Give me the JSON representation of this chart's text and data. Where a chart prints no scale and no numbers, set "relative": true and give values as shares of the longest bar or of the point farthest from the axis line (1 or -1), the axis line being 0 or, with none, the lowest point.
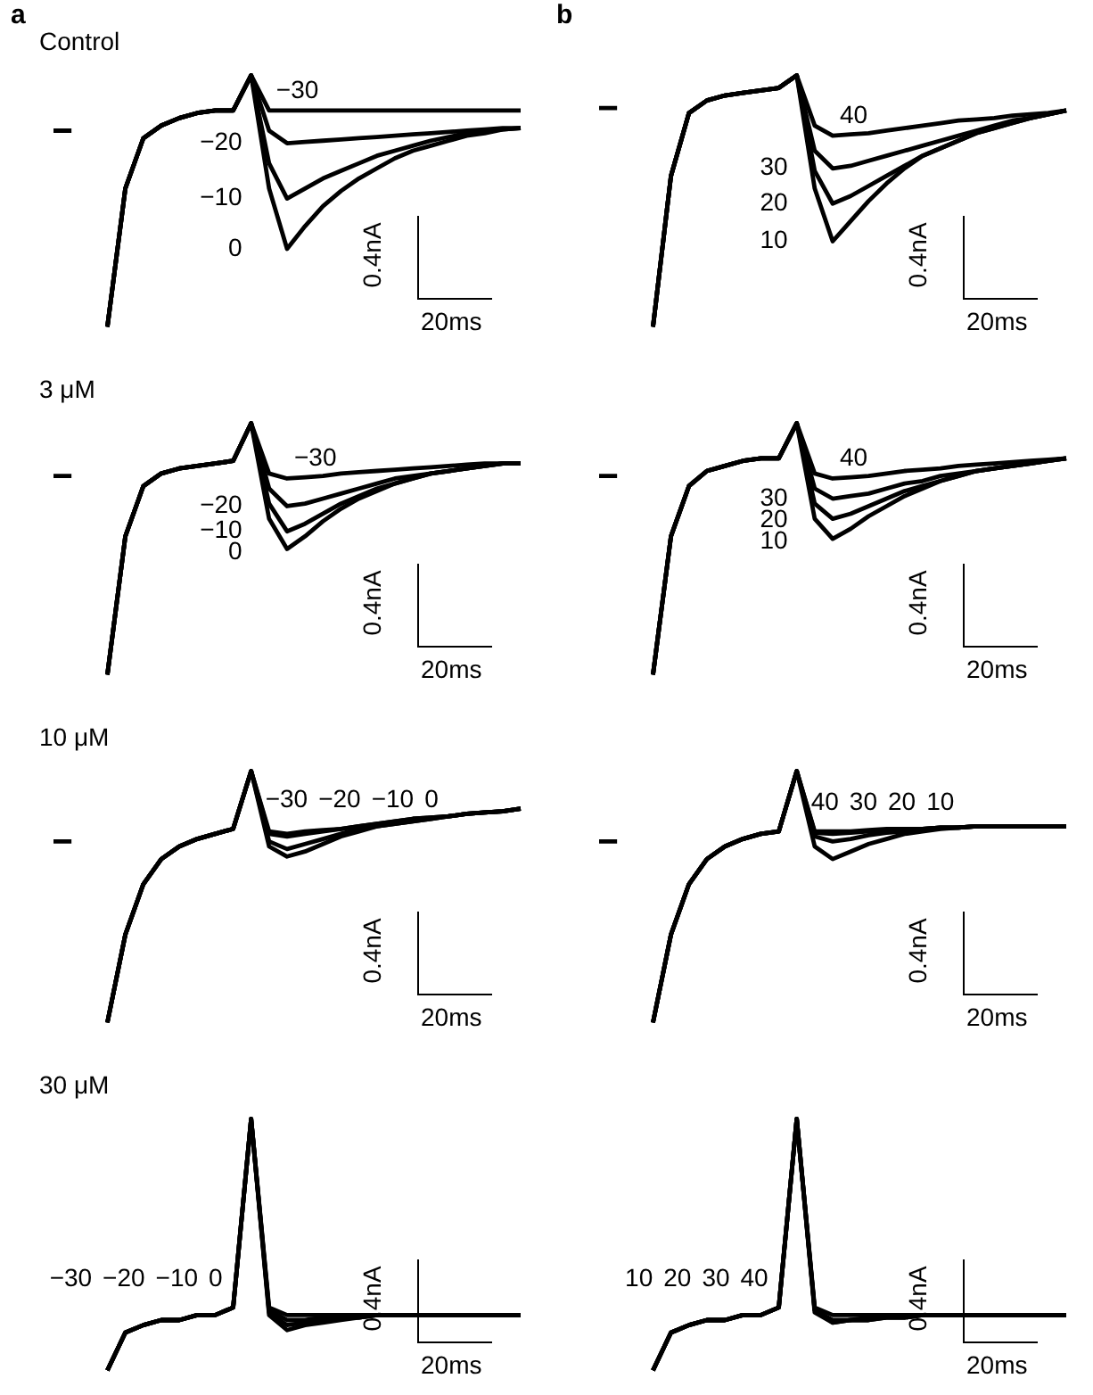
{
  "chart_data": [
    {
      "type": "line",
      "title": "a",
      "subtitle": "Control",
      "relative": true,
      "annotations": [
        "0.4nA",
        "20ms"
      ],
      "categories": [
        null,
        null,
        null,
        null,
        null,
        null,
        null,
        null,
        null,
        null,
        null,
        null,
        null,
        null,
        null,
        null,
        null,
        null,
        null,
        null,
        null,
        null,
        null,
        null,
        null,
        null,
        null
      ],
      "series": [
        {
          "color": "#000000",
          "values": [
            0.78,
            0.78,
            null,
            null,
            null,
            null,
            null,
            null,
            null,
            null,
            null,
            null,
            null,
            null,
            null,
            null,
            null,
            null,
            null,
            null,
            null,
            null,
            null,
            null,
            null,
            null,
            null
          ]
        },
        {
          "name": "−30",
          "color": "#000000",
          "values": [
            null,
            null,
            null,
            0,
            0.55,
            0.75,
            0.8,
            0.83,
            0.85,
            0.86,
            0.86,
            1,
            0.86,
            0.86,
            0.86,
            0.86,
            0.86,
            0.86,
            0.86,
            0.86,
            0.86,
            0.86,
            0.86,
            0.86,
            0.86,
            0.86,
            0.86
          ]
        },
        {
          "name": "−20",
          "color": "#000000",
          "values": [
            null,
            null,
            null,
            0,
            0.55,
            0.75,
            0.8,
            0.83,
            0.85,
            0.86,
            0.86,
            1,
            0.78,
            0.73,
            0.735,
            0.74,
            0.745,
            0.75,
            0.755,
            0.76,
            0.765,
            0.77,
            0.775,
            0.78,
            0.785,
            0.79,
            0.79
          ]
        },
        {
          "name": "−10",
          "color": "#000000",
          "values": [
            null,
            null,
            null,
            0,
            0.55,
            0.75,
            0.8,
            0.83,
            0.85,
            0.86,
            0.86,
            1,
            0.65,
            0.51,
            0.55,
            0.59,
            0.62,
            0.65,
            0.68,
            0.7,
            0.72,
            0.74,
            0.755,
            0.77,
            0.78,
            0.785,
            0.79
          ]
        },
        {
          "name": "0",
          "color": "#000000",
          "values": [
            null,
            null,
            null,
            0,
            0.55,
            0.75,
            0.8,
            0.83,
            0.85,
            0.86,
            0.86,
            1,
            0.55,
            0.31,
            0.4,
            0.48,
            0.54,
            0.59,
            0.63,
            0.67,
            0.7,
            0.72,
            0.74,
            0.76,
            0.77,
            0.785,
            0.79
          ]
        }
      ]
    },
    {
      "type": "line",
      "title": "b",
      "relative": true,
      "annotations": [
        "0.4nA",
        "20ms"
      ],
      "categories": [
        null,
        null,
        null,
        null,
        null,
        null,
        null,
        null,
        null,
        null,
        null,
        null,
        null,
        null,
        null,
        null,
        null,
        null,
        null,
        null,
        null,
        null,
        null,
        null,
        null,
        null,
        null
      ],
      "series": [
        {
          "color": "#000000",
          "values": [
            0.87,
            0.87,
            null,
            null,
            null,
            null,
            null,
            null,
            null,
            null,
            null,
            null,
            null,
            null,
            null,
            null,
            null,
            null,
            null,
            null,
            null,
            null,
            null,
            null,
            null,
            null,
            null
          ]
        },
        {
          "name": "40",
          "color": "#000000",
          "values": [
            null,
            null,
            null,
            0,
            0.6,
            0.85,
            0.9,
            0.92,
            0.93,
            0.94,
            0.95,
            1,
            0.8,
            0.76,
            0.765,
            0.77,
            0.78,
            0.79,
            0.8,
            0.81,
            0.82,
            0.825,
            0.83,
            0.84,
            0.845,
            0.85,
            0.86
          ]
        },
        {
          "name": "30",
          "color": "#000000",
          "values": [
            null,
            null,
            null,
            0,
            0.6,
            0.85,
            0.9,
            0.92,
            0.93,
            0.94,
            0.95,
            1,
            0.7,
            0.63,
            0.64,
            0.66,
            0.68,
            0.7,
            0.72,
            0.74,
            0.76,
            0.78,
            0.8,
            0.82,
            0.83,
            0.845,
            0.86
          ]
        },
        {
          "name": "20",
          "color": "#000000",
          "values": [
            null,
            null,
            null,
            0,
            0.6,
            0.85,
            0.9,
            0.92,
            0.93,
            0.94,
            0.95,
            1,
            0.62,
            0.49,
            0.52,
            0.56,
            0.6,
            0.64,
            0.68,
            0.71,
            0.74,
            0.77,
            0.79,
            0.81,
            0.83,
            0.845,
            0.86
          ]
        },
        {
          "name": "10",
          "color": "#000000",
          "values": [
            null,
            null,
            null,
            0,
            0.6,
            0.85,
            0.9,
            0.92,
            0.93,
            0.94,
            0.95,
            1,
            0.55,
            0.34,
            0.42,
            0.5,
            0.57,
            0.63,
            0.68,
            0.71,
            0.74,
            0.77,
            0.79,
            0.81,
            0.83,
            0.845,
            0.86
          ]
        }
      ]
    },
    {
      "type": "line",
      "subtitle": "3 μM",
      "relative": true,
      "annotations": [
        "0.4nA",
        "20ms"
      ],
      "categories": [
        null,
        null,
        null,
        null,
        null,
        null,
        null,
        null,
        null,
        null,
        null,
        null,
        null,
        null,
        null,
        null,
        null,
        null,
        null,
        null,
        null,
        null,
        null,
        null,
        null,
        null,
        null
      ],
      "series": [
        {
          "color": "#000000",
          "values": [
            0.79,
            0.79,
            null,
            null,
            null,
            null,
            null,
            null,
            null,
            null,
            null,
            null,
            null,
            null,
            null,
            null,
            null,
            null,
            null,
            null,
            null,
            null,
            null,
            null,
            null,
            null,
            null
          ]
        },
        {
          "name": "−30",
          "color": "#000000",
          "values": [
            null,
            null,
            null,
            0,
            0.55,
            0.75,
            0.8,
            0.82,
            0.83,
            0.84,
            0.85,
            1,
            0.8,
            0.78,
            0.785,
            0.79,
            0.8,
            0.805,
            0.81,
            0.815,
            0.82,
            0.825,
            0.83,
            0.835,
            0.84,
            0.84,
            0.84
          ]
        },
        {
          "name": "−20",
          "color": "#000000",
          "values": [
            null,
            null,
            null,
            0,
            0.55,
            0.75,
            0.8,
            0.82,
            0.83,
            0.84,
            0.85,
            1,
            0.74,
            0.67,
            0.68,
            0.7,
            0.72,
            0.74,
            0.76,
            0.78,
            0.79,
            0.8,
            0.81,
            0.82,
            0.83,
            0.84,
            0.84
          ]
        },
        {
          "name": "−10",
          "color": "#000000",
          "values": [
            null,
            null,
            null,
            0,
            0.55,
            0.75,
            0.8,
            0.82,
            0.83,
            0.84,
            0.85,
            1,
            0.68,
            0.57,
            0.6,
            0.64,
            0.68,
            0.71,
            0.74,
            0.76,
            0.78,
            0.8,
            0.81,
            0.82,
            0.83,
            0.84,
            0.84
          ]
        },
        {
          "name": "0",
          "color": "#000000",
          "values": [
            null,
            null,
            null,
            0,
            0.55,
            0.75,
            0.8,
            0.82,
            0.83,
            0.84,
            0.85,
            1,
            0.62,
            0.5,
            0.55,
            0.61,
            0.66,
            0.7,
            0.73,
            0.76,
            0.78,
            0.8,
            0.81,
            0.82,
            0.83,
            0.84,
            0.84
          ]
        }
      ]
    },
    {
      "type": "line",
      "relative": true,
      "annotations": [
        "0.4nA",
        "20ms"
      ],
      "categories": [
        null,
        null,
        null,
        null,
        null,
        null,
        null,
        null,
        null,
        null,
        null,
        null,
        null,
        null,
        null,
        null,
        null,
        null,
        null,
        null,
        null,
        null,
        null,
        null,
        null,
        null,
        null
      ],
      "series": [
        {
          "color": "#000000",
          "values": [
            0.79,
            0.79,
            null,
            null,
            null,
            null,
            null,
            null,
            null,
            null,
            null,
            null,
            null,
            null,
            null,
            null,
            null,
            null,
            null,
            null,
            null,
            null,
            null,
            null,
            null,
            null,
            null
          ]
        },
        {
          "name": "40",
          "color": "#000000",
          "values": [
            null,
            null,
            null,
            0,
            0.55,
            0.75,
            0.81,
            0.83,
            0.85,
            0.86,
            0.86,
            1,
            0.8,
            0.78,
            0.785,
            0.79,
            0.8,
            0.81,
            0.815,
            0.82,
            0.83,
            0.835,
            0.84,
            0.845,
            0.85,
            0.855,
            0.86
          ]
        },
        {
          "name": "30",
          "color": "#000000",
          "values": [
            null,
            null,
            null,
            0,
            0.55,
            0.75,
            0.81,
            0.83,
            0.85,
            0.86,
            0.86,
            1,
            0.74,
            0.7,
            0.71,
            0.72,
            0.74,
            0.76,
            0.77,
            0.79,
            0.8,
            0.81,
            0.82,
            0.83,
            0.84,
            0.85,
            0.86
          ]
        },
        {
          "name": "20",
          "color": "#000000",
          "values": [
            null,
            null,
            null,
            0,
            0.55,
            0.75,
            0.81,
            0.83,
            0.85,
            0.86,
            0.86,
            1,
            0.68,
            0.62,
            0.64,
            0.67,
            0.7,
            0.73,
            0.75,
            0.77,
            0.79,
            0.81,
            0.82,
            0.83,
            0.84,
            0.85,
            0.86
          ]
        },
        {
          "name": "10",
          "color": "#000000",
          "values": [
            null,
            null,
            null,
            0,
            0.55,
            0.75,
            0.81,
            0.83,
            0.85,
            0.86,
            0.86,
            1,
            0.62,
            0.54,
            0.58,
            0.63,
            0.67,
            0.71,
            0.74,
            0.77,
            0.79,
            0.81,
            0.82,
            0.83,
            0.84,
            0.85,
            0.86
          ]
        }
      ]
    },
    {
      "type": "line",
      "subtitle": "10 μM",
      "relative": true,
      "annotations": [
        "0.4nA",
        "20ms"
      ],
      "categories": [
        null,
        null,
        null,
        null,
        null,
        null,
        null,
        null,
        null,
        null,
        null,
        null,
        null,
        null,
        null,
        null,
        null,
        null,
        null,
        null,
        null,
        null,
        null,
        null,
        null,
        null,
        null
      ],
      "series": [
        {
          "color": "#000000",
          "values": [
            0.72,
            0.72,
            null,
            null,
            null,
            null,
            null,
            null,
            null,
            null,
            null,
            null,
            null,
            null,
            null,
            null,
            null,
            null,
            null,
            null,
            null,
            null,
            null,
            null,
            null,
            null,
            null
          ]
        },
        {
          "name": "−30",
          "color": "#000000",
          "values": [
            null,
            null,
            null,
            0,
            0.35,
            0.55,
            0.65,
            0.7,
            0.73,
            0.75,
            0.77,
            1,
            0.76,
            0.75,
            0.76,
            0.765,
            0.77,
            0.78,
            0.79,
            0.8,
            0.81,
            0.815,
            0.82,
            0.83,
            0.835,
            0.84,
            0.85
          ]
        },
        {
          "name": "−20",
          "color": "#000000",
          "values": [
            null,
            null,
            null,
            0,
            0.35,
            0.55,
            0.65,
            0.7,
            0.73,
            0.75,
            0.77,
            1,
            0.75,
            0.74,
            0.75,
            0.76,
            0.77,
            0.78,
            0.79,
            0.8,
            0.81,
            0.815,
            0.82,
            0.83,
            0.835,
            0.84,
            0.85
          ]
        },
        {
          "name": "−10",
          "color": "#000000",
          "values": [
            null,
            null,
            null,
            0,
            0.35,
            0.55,
            0.65,
            0.7,
            0.73,
            0.75,
            0.77,
            1,
            0.72,
            0.69,
            0.71,
            0.73,
            0.75,
            0.77,
            0.78,
            0.79,
            0.8,
            0.81,
            0.82,
            0.83,
            0.835,
            0.84,
            0.85
          ]
        },
        {
          "name": "0",
          "color": "#000000",
          "values": [
            null,
            null,
            null,
            0,
            0.35,
            0.55,
            0.65,
            0.7,
            0.73,
            0.75,
            0.77,
            1,
            0.7,
            0.66,
            0.68,
            0.71,
            0.74,
            0.76,
            0.78,
            0.79,
            0.8,
            0.81,
            0.82,
            0.83,
            0.835,
            0.84,
            0.85
          ]
        }
      ]
    },
    {
      "type": "line",
      "relative": true,
      "annotations": [
        "0.4nA",
        "20ms"
      ],
      "categories": [
        null,
        null,
        null,
        null,
        null,
        null,
        null,
        null,
        null,
        null,
        null,
        null,
        null,
        null,
        null,
        null,
        null,
        null,
        null,
        null,
        null,
        null,
        null,
        null,
        null,
        null,
        null
      ],
      "series": [
        {
          "color": "#000000",
          "values": [
            0.72,
            0.72,
            null,
            null,
            null,
            null,
            null,
            null,
            null,
            null,
            null,
            null,
            null,
            null,
            null,
            null,
            null,
            null,
            null,
            null,
            null,
            null,
            null,
            null,
            null,
            null,
            null
          ]
        },
        {
          "name": "30",
          "color": "#000000",
          "values": [
            null,
            null,
            null,
            0,
            0.35,
            0.55,
            0.65,
            0.7,
            0.73,
            0.75,
            0.76,
            1,
            0.755,
            0.75,
            0.755,
            0.76,
            0.765,
            0.77,
            0.77,
            0.775,
            0.775,
            0.78,
            0.78,
            0.78,
            0.78,
            0.78,
            0.78
          ]
        },
        {
          "name": "40",
          "color": "#000000",
          "values": [
            null,
            null,
            null,
            0,
            0.35,
            0.55,
            0.65,
            0.7,
            0.73,
            0.75,
            0.76,
            1,
            0.76,
            0.76,
            0.76,
            0.765,
            0.77,
            0.77,
            0.77,
            0.775,
            0.775,
            0.78,
            0.78,
            0.78,
            0.78,
            0.78,
            0.78
          ]
        },
        {
          "name": "20",
          "color": "#000000",
          "values": [
            null,
            null,
            null,
            0,
            0.35,
            0.55,
            0.65,
            0.7,
            0.73,
            0.75,
            0.76,
            1,
            0.74,
            0.72,
            0.73,
            0.745,
            0.755,
            0.76,
            0.77,
            0.775,
            0.775,
            0.78,
            0.78,
            0.78,
            0.78,
            0.78,
            0.78
          ]
        },
        {
          "name": "10",
          "color": "#000000",
          "values": [
            null,
            null,
            null,
            0,
            0.35,
            0.55,
            0.65,
            0.7,
            0.73,
            0.75,
            0.76,
            1,
            0.7,
            0.65,
            0.68,
            0.71,
            0.73,
            0.75,
            0.76,
            0.77,
            0.775,
            0.78,
            0.78,
            0.78,
            0.78,
            0.78,
            0.78
          ]
        }
      ]
    },
    {
      "type": "line",
      "subtitle": "30 μM",
      "relative": true,
      "annotations": [
        "0.4nA",
        "20ms"
      ],
      "categories": [
        null,
        null,
        null,
        null,
        null,
        null,
        null,
        null,
        null,
        null,
        null,
        null,
        null,
        null,
        null,
        null,
        null,
        null,
        null,
        null,
        null,
        null,
        null,
        null,
        null,
        null,
        null
      ],
      "series": [
        {
          "name": "−30",
          "color": "#000000",
          "values": [
            null,
            null,
            null,
            0,
            0.15,
            0.18,
            0.2,
            0.2,
            0.22,
            0.22,
            0.25,
            1,
            0.25,
            0.22,
            0.22,
            0.22,
            0.22,
            0.22,
            0.22,
            0.22,
            0.22,
            0.22,
            0.22,
            0.22,
            0.22,
            0.22,
            0.22
          ]
        },
        {
          "name": "−20",
          "color": "#000000",
          "values": [
            null,
            null,
            null,
            0,
            0.15,
            0.18,
            0.2,
            0.2,
            0.22,
            0.22,
            0.25,
            1,
            0.24,
            0.2,
            0.2,
            0.21,
            0.21,
            0.21,
            0.22,
            0.22,
            0.22,
            0.22,
            0.22,
            0.22,
            0.22,
            0.22,
            0.22
          ]
        },
        {
          "name": "−10",
          "color": "#000000",
          "values": [
            null,
            null,
            null,
            0,
            0.15,
            0.18,
            0.2,
            0.2,
            0.22,
            0.22,
            0.25,
            1,
            0.23,
            0.18,
            0.19,
            0.2,
            0.21,
            0.21,
            0.22,
            0.22,
            0.22,
            0.22,
            0.22,
            0.22,
            0.22,
            0.22,
            0.22
          ]
        },
        {
          "name": "0",
          "color": "#000000",
          "values": [
            null,
            null,
            null,
            0,
            0.15,
            0.18,
            0.2,
            0.2,
            0.22,
            0.22,
            0.25,
            1,
            0.22,
            0.16,
            0.18,
            0.19,
            0.2,
            0.21,
            0.22,
            0.22,
            0.22,
            0.22,
            0.22,
            0.22,
            0.22,
            0.22,
            0.22
          ]
        }
      ]
    },
    {
      "type": "line",
      "relative": true,
      "annotations": [
        "0.4nA",
        "20ms"
      ],
      "categories": [
        null,
        null,
        null,
        null,
        null,
        null,
        null,
        null,
        null,
        null,
        null,
        null,
        null,
        null,
        null,
        null,
        null,
        null,
        null,
        null,
        null,
        null,
        null,
        null,
        null,
        null,
        null
      ],
      "series": [
        {
          "name": "10",
          "color": "#000000",
          "values": [
            null,
            null,
            null,
            0,
            0.15,
            0.18,
            0.2,
            0.2,
            0.22,
            0.22,
            0.25,
            1,
            0.25,
            0.22,
            0.22,
            0.22,
            0.22,
            0.22,
            0.22,
            0.22,
            0.22,
            0.22,
            0.22,
            0.22,
            0.22,
            0.22,
            0.22
          ]
        },
        {
          "name": "20",
          "color": "#000000",
          "values": [
            null,
            null,
            null,
            0,
            0.15,
            0.18,
            0.2,
            0.2,
            0.22,
            0.22,
            0.25,
            1,
            0.24,
            0.2,
            0.2,
            0.21,
            0.21,
            0.21,
            0.22,
            0.22,
            0.22,
            0.22,
            0.22,
            0.22,
            0.22,
            0.22,
            0.22
          ]
        },
        {
          "name": "30",
          "color": "#000000",
          "values": [
            null,
            null,
            null,
            0,
            0.15,
            0.18,
            0.2,
            0.2,
            0.22,
            0.22,
            0.25,
            1,
            0.23,
            0.19,
            0.2,
            0.2,
            0.21,
            0.21,
            0.22,
            0.22,
            0.22,
            0.22,
            0.22,
            0.22,
            0.22,
            0.22,
            0.22
          ]
        },
        {
          "name": "40",
          "color": "#000000",
          "values": [
            null,
            null,
            null,
            0,
            0.15,
            0.18,
            0.2,
            0.2,
            0.22,
            0.22,
            0.25,
            1,
            0.24,
            0.19,
            0.2,
            0.2,
            0.21,
            0.21,
            0.22,
            0.22,
            0.22,
            0.22,
            0.22,
            0.22,
            0.22,
            0.22,
            0.22
          ]
        }
      ]
    }
  ]
}
